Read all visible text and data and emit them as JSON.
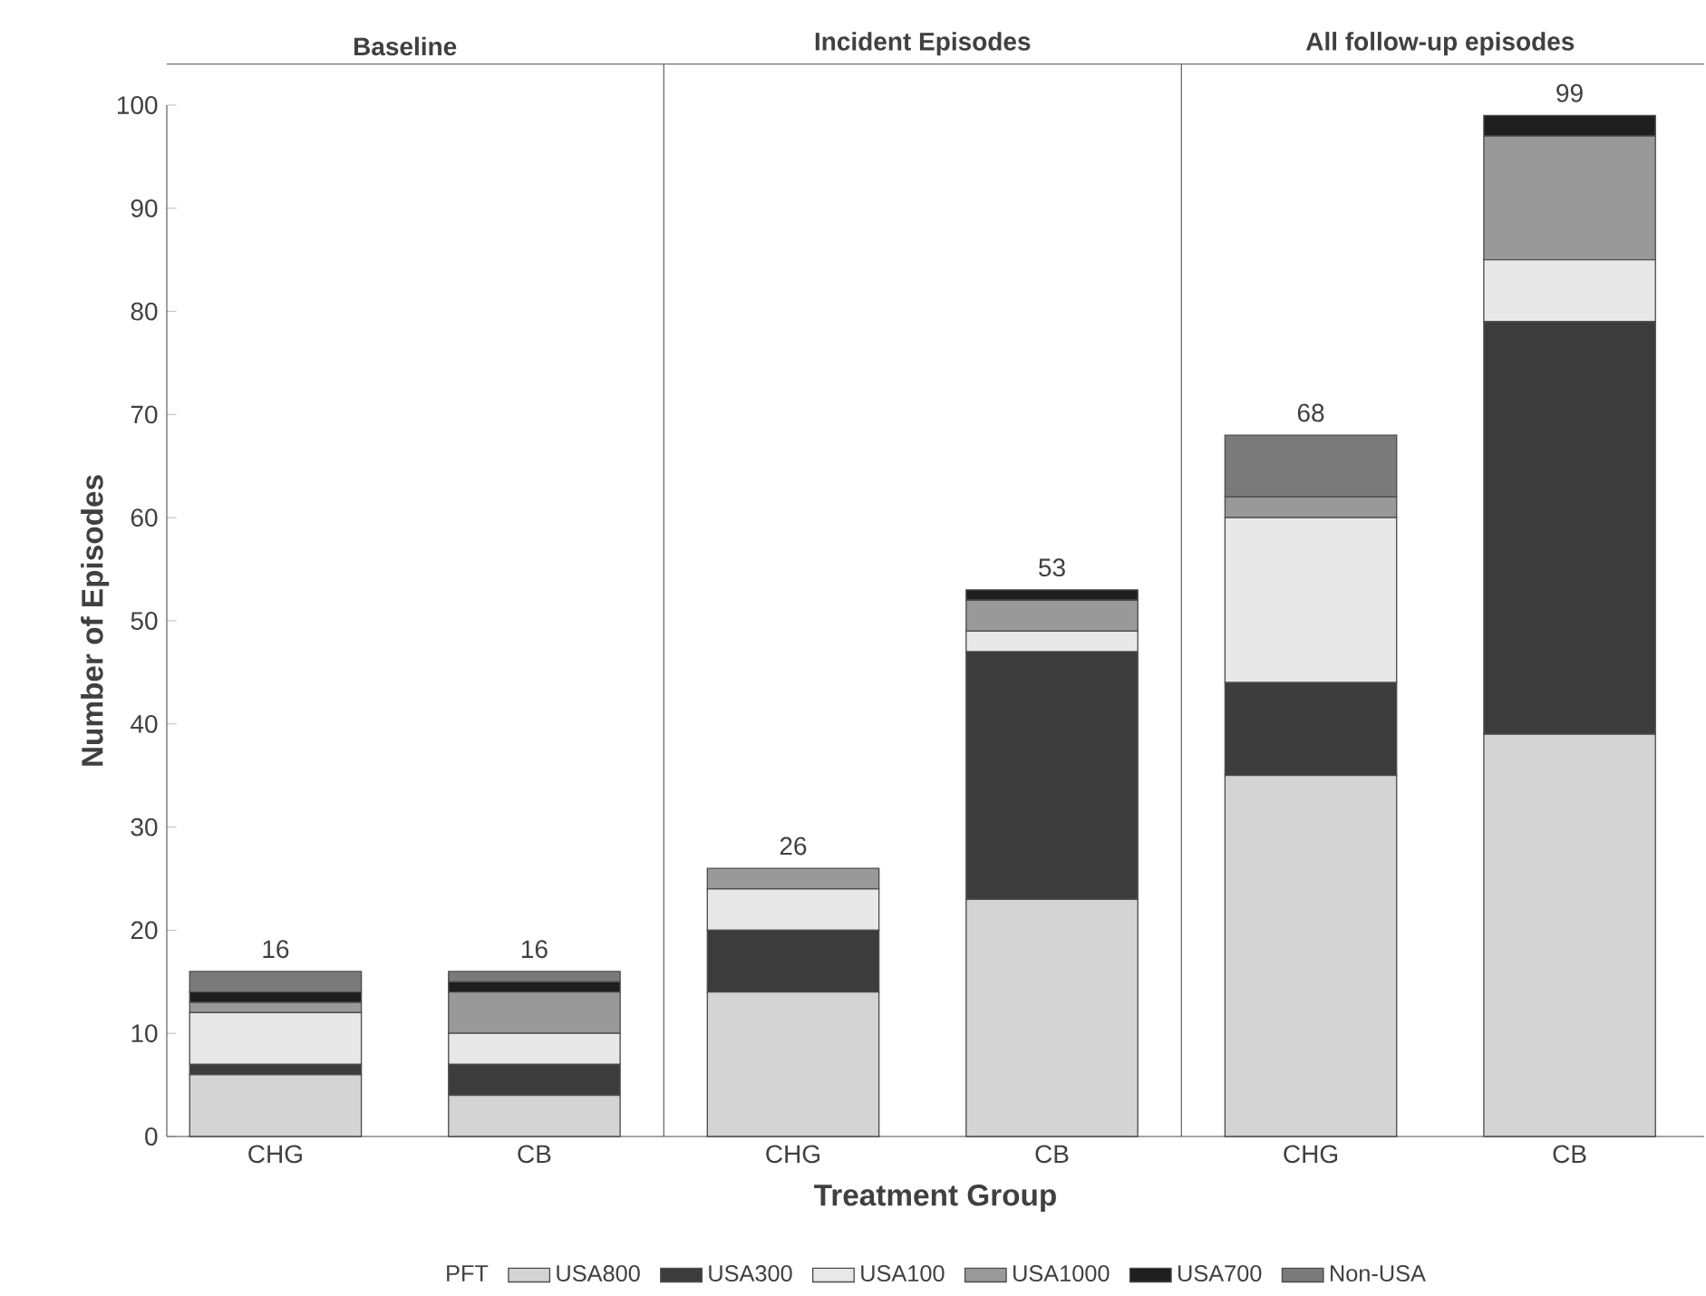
{
  "chart_data": {
    "type": "bar",
    "stacked": true,
    "xlabel": "Treatment Group",
    "ylabel": "Number of Episodes",
    "legend_title": "PFT",
    "categories": [
      "CHG",
      "CB",
      "CHG",
      "CB",
      "CHG",
      "CB"
    ],
    "series": [
      {
        "name": "USA800",
        "color": "#d4d4d4",
        "values": [
          6,
          4,
          14,
          23,
          35,
          39
        ]
      },
      {
        "name": "USA300",
        "color": "#3c3c3c",
        "values": [
          1,
          3,
          6,
          24,
          9,
          40
        ]
      },
      {
        "name": "USA100",
        "color": "#e8e8e8",
        "values": [
          5,
          3,
          4,
          2,
          16,
          6
        ]
      },
      {
        "name": "USA1000",
        "color": "#999999",
        "values": [
          1,
          4,
          2,
          3,
          2,
          12
        ]
      },
      {
        "name": "USA700",
        "color": "#1e1e1e",
        "values": [
          1,
          1,
          0,
          1,
          0,
          2
        ]
      },
      {
        "name": "Non-USA",
        "color": "#7a7a7a",
        "values": [
          2,
          1,
          0,
          0,
          6,
          0
        ]
      }
    ],
    "totals": [
      "16",
      "16",
      "26",
      "53",
      "68",
      "99"
    ],
    "annotations": [
      "Baseline",
      "Incident Episodes",
      "All follow-up episodes"
    ],
    "ylim": [
      0,
      100
    ],
    "yticks": [
      0,
      10,
      20,
      30,
      40,
      50,
      60,
      70,
      80,
      90,
      100
    ],
    "grid": false,
    "legend": "bottom"
  }
}
